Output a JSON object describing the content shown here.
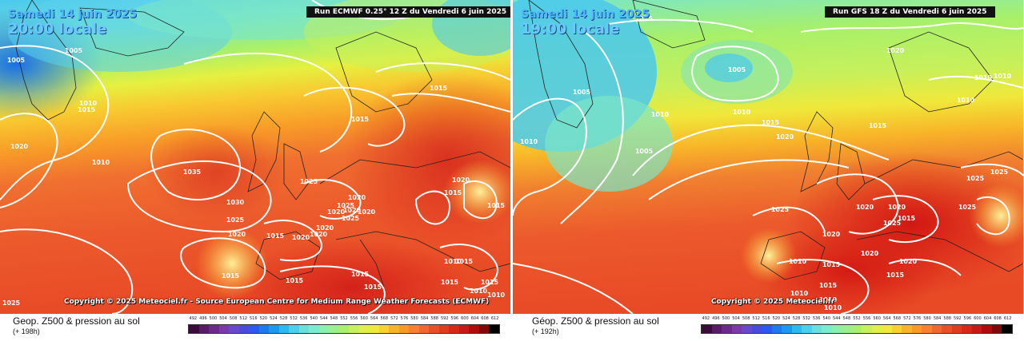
{
  "left": {
    "date": "Samedi 14 juin 2025",
    "hour": "20:00 locale",
    "run": "Run ECMWF 0.25° 12 Z du Vendredi 6 juin 2025",
    "copyright": "Copyright © 2025 Meteociel.fr - Source European Centre for Medium Range Weather Forecasts (ECMWF)",
    "product": "Geop. Z500 & pression au sol",
    "lead": "(+ 198h)"
  },
  "right": {
    "date": "Samedi 14 juin 2025",
    "hour": "19:00 locale",
    "run": "Run GFS 18 Z du Vendredi 6 juin 2025",
    "copyright": "Copyright © 2025 Meteociel.fr",
    "product": "Géop. Z500 & pression au sol",
    "lead": "(+ 192h)"
  },
  "scale": {
    "ticks": [
      "492",
      "496",
      "500",
      "504",
      "508",
      "512",
      "516",
      "520",
      "524",
      "528",
      "532",
      "536",
      "540",
      "544",
      "548",
      "552",
      "556",
      "560",
      "564",
      "568",
      "572",
      "576",
      "580",
      "584",
      "588",
      "592",
      "596",
      "600",
      "604",
      "608",
      "612"
    ],
    "colors": [
      "#3a0a3a",
      "#5a1a6a",
      "#6a2a8a",
      "#7a3aaa",
      "#6a4acc",
      "#4a4add",
      "#2a5aee",
      "#1a7aee",
      "#1a9aee",
      "#2abaee",
      "#4ad0ee",
      "#6ae0dd",
      "#7aeecc",
      "#8af0aa",
      "#9af08a",
      "#aaf06a",
      "#c8f05a",
      "#e0f04a",
      "#f0e83a",
      "#f8d030",
      "#f8b428",
      "#f89a28",
      "#f88030",
      "#f06830",
      "#e85028",
      "#e03c20",
      "#d82818",
      "#c81818",
      "#b00c0c",
      "#800808",
      "#000000"
    ]
  },
  "left_labels": [
    "1005",
    "1005",
    "1010",
    "1015",
    "1020",
    "1010",
    "1035",
    "1030",
    "1025",
    "1020",
    "1015",
    "1015",
    "1025",
    "1015",
    "1020",
    "1020",
    "1025",
    "1020",
    "1020",
    "1020",
    "1015",
    "1015",
    "1015",
    "1020",
    "1025",
    "1020",
    "1015",
    "1015",
    "1010",
    "1015",
    "1015",
    "1015",
    "1020",
    "1015",
    "1010",
    "1025",
    "1010"
  ],
  "right_labels": [
    "1015",
    "1005",
    "1010",
    "1005",
    "1010",
    "1010",
    "1005",
    "1015",
    "1020",
    "1020",
    "1015",
    "1010",
    "1015",
    "1010",
    "1015",
    "1025",
    "1025",
    "1020",
    "1025",
    "1020",
    "1020",
    "1010",
    "1015",
    "1015",
    "1025",
    "1010",
    "1010",
    "1010",
    "1020",
    "1025",
    "1020",
    "1010"
  ],
  "colors": {
    "run_bg": "#111111",
    "date_text": "#4fb6ff",
    "contour": "#ffffff",
    "coast": "#222222"
  }
}
